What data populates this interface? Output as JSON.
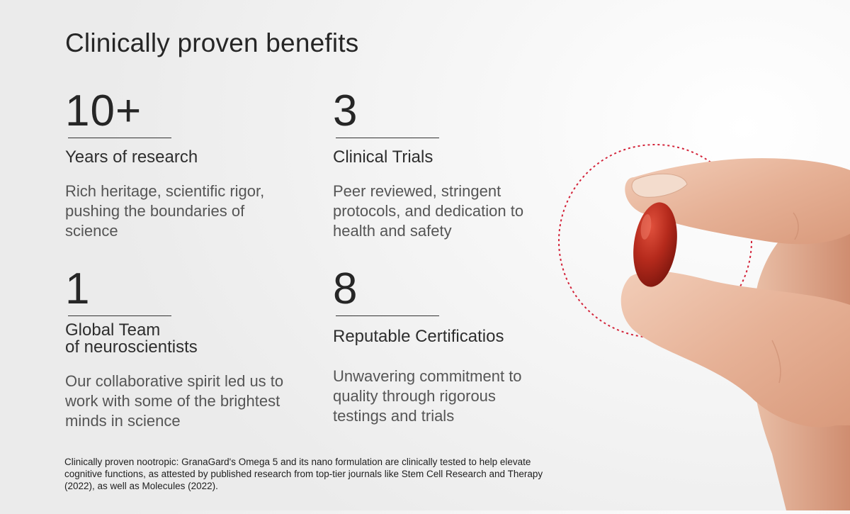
{
  "title": "Clinically proven benefits",
  "stats": [
    {
      "number": "10+",
      "label": "Years of research",
      "description": "Rich heritage, scientific rigor, pushing the boundaries of science"
    },
    {
      "number": "3",
      "label": "Clinical Trials",
      "description": "Peer reviewed, stringent protocols, and dedication to health and safety"
    },
    {
      "number": "1",
      "label": "Global Team\nof neuroscientists",
      "description": "Our collaborative spirit led us to work with some of the brightest minds in science"
    },
    {
      "number": "8",
      "label": "Reputable Certificatios",
      "description": "Unwavering commitment to quality through rigorous testings and trials"
    }
  ],
  "footnote": "Clinically proven nootropic: GranaGard's Omega 5 and its nano formulation are clinically tested to help elevate cognitive functions, as attested by published research from top-tier journals like Stem Cell Research and Therapy (2022), as well as Molecules (2022).",
  "colors": {
    "accent_dashed_circle": "#d3243a",
    "capsule": "#b5281c",
    "skin": "#e7b59b"
  },
  "image": {
    "icon": "hand-holding-capsule"
  }
}
